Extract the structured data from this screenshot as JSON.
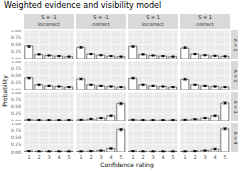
{
  "chart_data": {
    "type": "bar",
    "title": "Weighted evidence and visibility model",
    "x_label": "Confidence rating",
    "y_label": "Probability",
    "categories": [
      "1",
      "2",
      "3",
      "4",
      "5"
    ],
    "ylim": [
      0,
      1
    ],
    "yticks": [
      {
        "value": 0,
        "label": "0.00"
      },
      {
        "value": 0.25,
        "label": "0.25"
      },
      {
        "value": 0.5,
        "label": "0.50"
      },
      {
        "value": 0.75,
        "label": "0.75"
      },
      {
        "value": 1,
        "label": "1.00"
      }
    ],
    "grid": true,
    "color": "#ffffff",
    "columns": [
      {
        "label": "S = -1",
        "sublabel": "incorrect"
      },
      {
        "label": "S = -1",
        "sublabel": "correct"
      },
      {
        "label": "S = 1",
        "sublabel": "incorrect"
      },
      {
        "label": "S = 1",
        "sublabel": "correct"
      }
    ],
    "rows": [
      "A = 1",
      "A = 2",
      "A = 3",
      "A = 4"
    ],
    "panels": [
      [
        {
          "values": [
            0.45,
            0.15,
            0.12,
            0.1,
            0.08
          ],
          "points": [
            0.43,
            0.16,
            0.12,
            0.1,
            0.08
          ],
          "errors": [
            0.03,
            0.02,
            0.02,
            0.02,
            0.02
          ]
        },
        {
          "values": [
            0.4,
            0.17,
            0.13,
            0.1,
            0.08
          ],
          "points": [
            0.4,
            0.17,
            0.13,
            0.1,
            0.08
          ],
          "errors": [
            0.03,
            0.02,
            0.02,
            0.02,
            0.02
          ]
        },
        {
          "values": [
            0.44,
            0.15,
            0.12,
            0.1,
            0.08
          ],
          "points": [
            0.43,
            0.16,
            0.12,
            0.1,
            0.08
          ],
          "errors": [
            0.03,
            0.02,
            0.02,
            0.02,
            0.02
          ]
        },
        {
          "values": [
            0.38,
            0.17,
            0.13,
            0.11,
            0.09
          ],
          "points": [
            0.39,
            0.17,
            0.13,
            0.11,
            0.09
          ],
          "errors": [
            0.03,
            0.02,
            0.02,
            0.02,
            0.02
          ]
        }
      ],
      [
        {
          "values": [
            0.42,
            0.18,
            0.14,
            0.12,
            0.1
          ],
          "points": [
            0.41,
            0.18,
            0.14,
            0.12,
            0.1
          ],
          "errors": [
            0.03,
            0.02,
            0.02,
            0.02,
            0.02
          ]
        },
        {
          "values": [
            0.38,
            0.18,
            0.14,
            0.12,
            0.1
          ],
          "points": [
            0.38,
            0.18,
            0.14,
            0.12,
            0.1
          ],
          "errors": [
            0.03,
            0.02,
            0.02,
            0.02,
            0.02
          ]
        },
        {
          "values": [
            0.4,
            0.18,
            0.14,
            0.12,
            0.1
          ],
          "points": [
            0.41,
            0.18,
            0.14,
            0.12,
            0.1
          ],
          "errors": [
            0.03,
            0.02,
            0.02,
            0.02,
            0.02
          ]
        },
        {
          "values": [
            0.36,
            0.18,
            0.14,
            0.12,
            0.1
          ],
          "points": [
            0.37,
            0.18,
            0.14,
            0.12,
            0.1
          ],
          "errors": [
            0.03,
            0.02,
            0.02,
            0.02,
            0.02
          ]
        }
      ],
      [
        {
          "values": [
            0.04,
            0.03,
            0.03,
            0.03,
            0.03
          ],
          "points": [
            0.04,
            0.03,
            0.03,
            0.03,
            0.03
          ],
          "errors": [
            0.02,
            0.02,
            0.02,
            0.02,
            0.02
          ]
        },
        {
          "values": [
            0.04,
            0.06,
            0.1,
            0.18,
            0.6
          ],
          "points": [
            0.04,
            0.07,
            0.1,
            0.18,
            0.6
          ],
          "errors": [
            0.02,
            0.02,
            0.02,
            0.03,
            0.04
          ]
        },
        {
          "values": [
            0.04,
            0.03,
            0.03,
            0.03,
            0.03
          ],
          "points": [
            0.04,
            0.03,
            0.03,
            0.03,
            0.03
          ],
          "errors": [
            0.02,
            0.02,
            0.02,
            0.02,
            0.02
          ]
        },
        {
          "values": [
            0.04,
            0.06,
            0.1,
            0.18,
            0.62
          ],
          "points": [
            0.04,
            0.06,
            0.1,
            0.18,
            0.62
          ],
          "errors": [
            0.02,
            0.02,
            0.02,
            0.03,
            0.04
          ]
        }
      ],
      [
        {
          "values": [
            0.03,
            0.02,
            0.02,
            0.02,
            0.02
          ],
          "points": [
            0.03,
            0.02,
            0.02,
            0.02,
            0.02
          ],
          "errors": [
            0.02,
            0.02,
            0.02,
            0.02,
            0.02
          ]
        },
        {
          "values": [
            0.02,
            0.03,
            0.05,
            0.12,
            0.78
          ],
          "points": [
            0.02,
            0.03,
            0.05,
            0.12,
            0.77
          ],
          "errors": [
            0.02,
            0.02,
            0.02,
            0.03,
            0.04
          ]
        },
        {
          "values": [
            0.03,
            0.02,
            0.02,
            0.02,
            0.02
          ],
          "points": [
            0.03,
            0.02,
            0.02,
            0.02,
            0.02
          ],
          "errors": [
            0.02,
            0.02,
            0.02,
            0.02,
            0.02
          ]
        },
        {
          "values": [
            0.02,
            0.03,
            0.05,
            0.1,
            0.8
          ],
          "points": [
            0.02,
            0.03,
            0.05,
            0.1,
            0.8
          ],
          "errors": [
            0.02,
            0.02,
            0.02,
            0.03,
            0.04
          ]
        }
      ]
    ]
  }
}
